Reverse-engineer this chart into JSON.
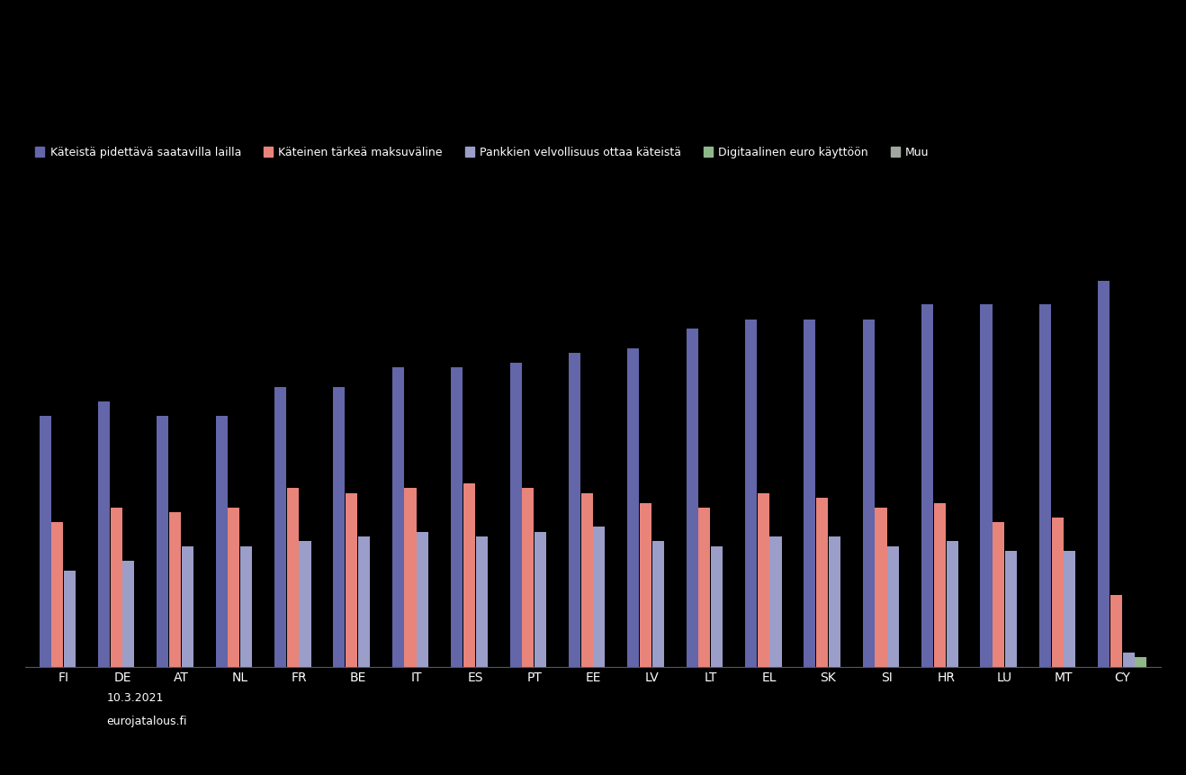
{
  "background_color": "#000000",
  "bar_colors": [
    "#6366a8",
    "#e8847a",
    "#9b9ec8",
    "#8fb88a"
  ],
  "legend_colors": [
    "#6366a8",
    "#e8847a",
    "#9b9ec8",
    "#8fb88a",
    "#a0a8a0"
  ],
  "legend_labels": [
    "Käteistä pidettävä saatavilla lailla",
    "Käteinen tärkeä maksuväline",
    "Pankkien velvollisuus ottaa käteistä",
    "Digitaalinen euro käyttöön",
    "Muu"
  ],
  "categories": [
    "FI",
    "DE",
    "AT",
    "NL",
    "FR",
    "BE",
    "IT",
    "ES",
    "PT",
    "EE",
    "LV",
    "LT",
    "EL",
    "SK",
    "SI",
    "HR",
    "LU",
    "MT",
    "CY"
  ],
  "series1": [
    52,
    55,
    52,
    52,
    58,
    58,
    62,
    62,
    63,
    65,
    66,
    70,
    72,
    72,
    72,
    75,
    75,
    75,
    80
  ],
  "series2": [
    30,
    33,
    32,
    33,
    37,
    36,
    37,
    38,
    37,
    36,
    34,
    33,
    36,
    35,
    33,
    34,
    30,
    31,
    15
  ],
  "series3": [
    20,
    22,
    25,
    25,
    26,
    27,
    28,
    27,
    28,
    29,
    26,
    25,
    27,
    27,
    25,
    26,
    24,
    24,
    3
  ],
  "series4": [
    0,
    0,
    0,
    0,
    0,
    0,
    0,
    0,
    0,
    0,
    0,
    0,
    0,
    0,
    0,
    0,
    0,
    0,
    2
  ],
  "ylim": [
    0,
    90
  ],
  "date_text": "10.3.2021",
  "source_text": "eurojatalous.fi"
}
